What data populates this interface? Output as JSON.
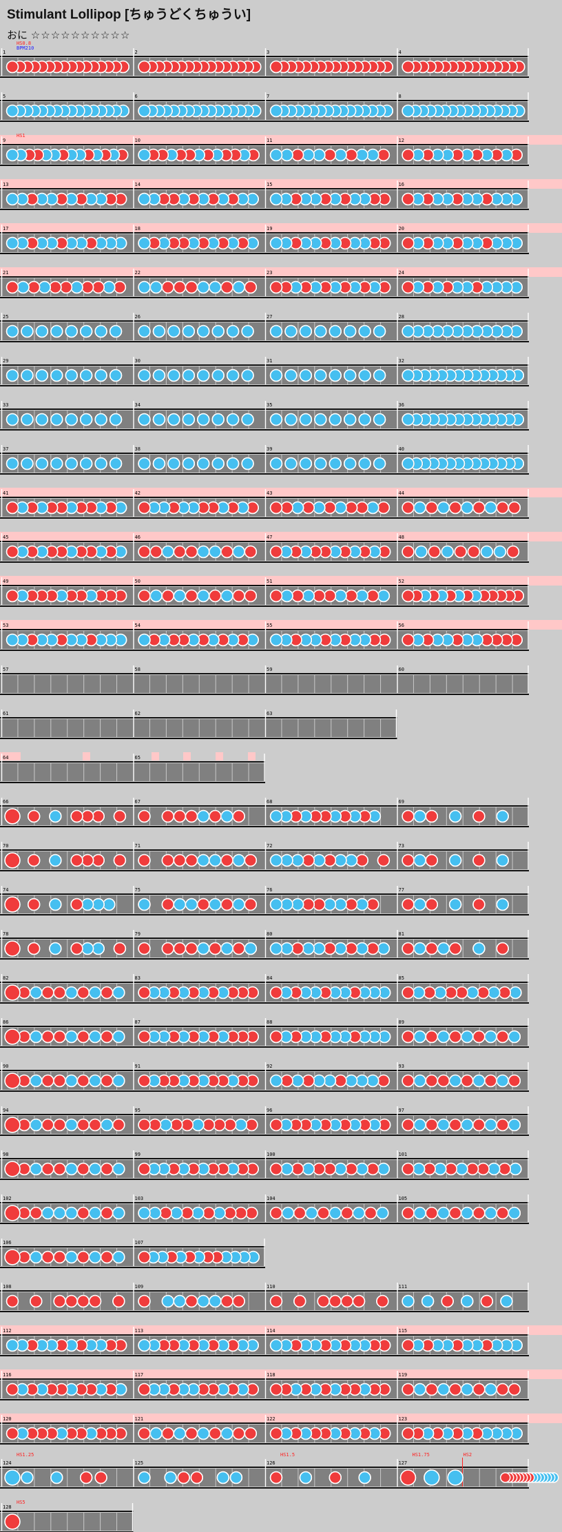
{
  "song": {
    "title": "Stimulant Lollipop",
    "subtitle": "[ちゅうどくちゅうい]",
    "course_label": "おに",
    "stars": "☆☆☆☆☆☆☆☆☆☆"
  },
  "colors": {
    "background": "#cccccc",
    "lane": "#808080",
    "lane_border": "#111111",
    "beat_line": "#c9c9c9",
    "gogo": "#ffc8c8",
    "don": "#f03c3c",
    "ka": "#45bff0",
    "note_outline": "#ffffff",
    "note_ring": "#000000",
    "hs_text": "#ff2020",
    "bpm_text": "#2020ff",
    "measure_text": "#000000"
  },
  "annotations": {
    "hs_start": "HS0.8",
    "bpm_start": "BPM210",
    "hs_9": "HS1",
    "hs_124": "HS1.25",
    "hs_126": "HS1.5",
    "hs_127": "HS1.75",
    "hs_127b": "HS2",
    "hs_128": "HS5"
  },
  "rows": [
    {
      "measures": [
        1,
        2,
        3,
        4
      ],
      "gogo": false,
      "label": "hs_start",
      "label2": "bpm_start",
      "notes": [
        "dddd dddd dddd dddd",
        "dddd dddd dddd dddd",
        "dddd dddd dddd dddd",
        "dddd dddd dddd dddd"
      ]
    },
    {
      "measures": [
        5,
        6,
        7,
        8
      ],
      "gogo": false,
      "notes": [
        "kkkk kkkk kkkk kkkk",
        "kkkk kkkk kkkk kkkk",
        "kkkk kkkk kkkk kkkk",
        "kkkk kkkk kkkk kkkk"
      ]
    },
    {
      "measures": [
        9,
        10,
        11,
        12
      ],
      "gogo": true,
      "label": "hs_9",
      "notes": [
        "kkddkkdkkdkdkd",
        "kddkddkdkddkd",
        "kkdkkdkdkkd",
        "dkdkkdkdkdkd"
      ]
    },
    {
      "measures": [
        13,
        14,
        15,
        16
      ],
      "gogo": true,
      "notes": [
        "kkdkkdkdkkdd",
        "kkddkdkdkdkk",
        "kkdkkdkdkkdd",
        "dkdkkdkkdkkk"
      ]
    },
    {
      "measures": [
        17,
        18,
        19,
        20
      ],
      "gogo": true,
      "notes": [
        "kkdkkdkkdkkk",
        "kdkddkdkdkdk",
        "kkdkkdkdkkdd",
        "dkdkkdkkdkkk"
      ]
    },
    {
      "measures": [
        21,
        22,
        23,
        24
      ],
      "gogo": true,
      "notes": [
        "dkdkddkddkd",
        "kkdddkkdkd",
        "ddkdkdkdkdkd",
        "dkdkdkkdkkkk"
      ]
    },
    {
      "measures": [
        25,
        26,
        27,
        28
      ],
      "gogo": false,
      "notes": [
        "kkkkkkkk",
        "kkkkkkkk",
        "kkkkkkkk",
        "kkkkkkkkkkkk"
      ]
    },
    {
      "measures": [
        29,
        30,
        31,
        32
      ],
      "gogo": false,
      "notes": [
        "kkkkkkkk",
        "kkkkkkkk",
        "kkkkkkkk",
        "kkkkkkkkkkkkkk"
      ]
    },
    {
      "measures": [
        33,
        34,
        35,
        36
      ],
      "gogo": false,
      "notes": [
        "kkkkkkkk",
        "kkkkkkkk",
        "kkkkkkkk",
        "kkkkkkkkkkkkkk"
      ]
    },
    {
      "measures": [
        37,
        38,
        39,
        40
      ],
      "gogo": false,
      "notes": [
        "kkkkkkkk",
        "kkkkkkkk",
        "kkkkkkkk",
        "kkkkkkkkkkkkkk"
      ]
    },
    {
      "measures": [
        41,
        42,
        43,
        44
      ],
      "gogo": true,
      "notes": [
        "dkdkddkddkdk",
        "dkkdkkddkdkd",
        "ddkdkdkddkd",
        "dkdkdkdkdd"
      ]
    },
    {
      "measures": [
        45,
        46,
        47,
        48
      ],
      "gogo": true,
      "notes": [
        "dkdkddkddkdk",
        "ddkddkkdkd",
        "dkdkddkdkdkd",
        "dkdkddkkd"
      ]
    },
    {
      "measures": [
        49,
        50,
        51,
        52
      ],
      "gogo": true,
      "notes": [
        "dkdddkddkddd",
        "dkdkdkdkdd",
        "dkdkddkdkdk",
        "ddkdkdkdkddddd"
      ]
    },
    {
      "measures": [
        53,
        54,
        55,
        56
      ],
      "gogo": true,
      "notes": [
        "kkdkkdkkdkkk",
        "kdkddkdkdkdk",
        "kkdkkdkdkkdd",
        "dkdkkdkkdddd"
      ]
    },
    {
      "measures": [
        57,
        58,
        59,
        60
      ],
      "gogo": false,
      "notes": [
        "",
        "",
        "",
        ""
      ]
    },
    {
      "measures": [
        61,
        62,
        63
      ],
      "gogo": false,
      "notes": [
        "",
        "",
        ""
      ]
    },
    {
      "measures": [
        64,
        65
      ],
      "gogo": false,
      "gogo_blinks": true,
      "notes": [
        "",
        ""
      ]
    },
    {
      "measures": [
        66,
        67,
        68,
        69
      ],
      "gogo": false,
      "notes": [
        "D_d_k_ddd_d",
        "d_dddkdkd_",
        "kkdkddkdkdk_",
        "dkd_k_d_k_"
      ]
    },
    {
      "measures": [
        70,
        71,
        72,
        73
      ],
      "gogo": false,
      "notes": [
        "D_d_k_ddd_d",
        "d_dddkkdkd",
        "kkkdkdkkd_d",
        "dkd_k_d_k_"
      ]
    },
    {
      "measures": [
        74,
        75,
        76,
        77
      ],
      "gogo": false,
      "notes": [
        "D_d_k_dkkk_",
        "k_dkkdkdkd",
        "kkkddkkdkd_",
        "dkd_k_d_k_"
      ]
    },
    {
      "measures": [
        78,
        79,
        80,
        81
      ],
      "gogo": false,
      "notes": [
        "D_d_k_dkk_d",
        "d_dddkdkdk",
        "kkdkkdkdkdk",
        "dkdkd_k_d_"
      ]
    },
    {
      "measures": [
        82,
        83,
        84,
        85
      ],
      "gogo": false,
      "notes": [
        "Ddkddkdkdk",
        "dkkdkdkdkddd",
        "dkdkkdkkdkkk",
        "dkdkddkdkdk"
      ]
    },
    {
      "measures": [
        86,
        87,
        88,
        89
      ],
      "gogo": false,
      "notes": [
        "Ddkddkdkdk",
        "dkkdkdkdkddd",
        "dkdkkdkkdkkk",
        "dkdkdkdkdk"
      ]
    },
    {
      "measures": [
        90,
        91,
        92,
        93
      ],
      "gogo": false,
      "notes": [
        "Ddkddkdkdk",
        "dkddkdkddkdd",
        "kdkdkkdkkkd",
        "dkddkdkdkd"
      ]
    },
    {
      "measures": [
        94,
        95,
        96,
        97
      ],
      "gogo": false,
      "notes": [
        "Ddkddkddkd",
        "ddkddkdddkd",
        "dkddkdkdkdkd",
        "dkdkdkdkdk"
      ]
    },
    {
      "measures": [
        98,
        99,
        100,
        101
      ],
      "gogo": false,
      "notes": [
        "Ddkddkdkdk",
        "dkkdkdkddkdd",
        "dkdkddkdkdk",
        "dkdkdkddkdk"
      ]
    },
    {
      "measures": [
        102,
        103,
        104,
        105
      ],
      "gogo": false,
      "notes": [
        "Dddkkkdkdk",
        "kkdkdkdkddd",
        "dkdkdkdkdk",
        "dkdkdkdkdk"
      ]
    },
    {
      "measures": [
        106,
        107
      ],
      "gogo": false,
      "notes": [
        "Ddkddkdkdk",
        "dkkdkdkddkkkk"
      ]
    },
    {
      "measures": [
        108,
        109,
        110,
        111
      ],
      "gogo": false,
      "notes": [
        "d_d_dddd_d",
        "d_kkdkkdd_",
        "d_d_dddd_d",
        "kkdkdk"
      ]
    },
    {
      "measures": [
        112,
        113,
        114,
        115
      ],
      "gogo": true,
      "notes": [
        "kkdkkdkdkkdd",
        "kkddkdkdkdkk",
        "kkdkkdkdkkdd",
        "dkdkkdkkdkkk"
      ]
    },
    {
      "measures": [
        116,
        117,
        118,
        119
      ],
      "gogo": true,
      "notes": [
        "dkdkddkddkdk",
        "dkkdkkddkdkd",
        "ddkdkdkddkdd",
        "dkdkdkdkdd"
      ]
    },
    {
      "measures": [
        120,
        121,
        122,
        123
      ],
      "gogo": true,
      "notes": [
        "dkdddkddkddd",
        "dkdkdkdkdd",
        "dkdkddkdkdkd",
        "ddkdkdkdkkkk"
      ]
    },
    {
      "measures": [
        124,
        125,
        126,
        127
      ],
      "gogo": false,
      "labels": {
        "124": "hs_124",
        "126": "hs_126",
        "127": "hs_127"
      },
      "notes": [
        "Kk_k_dd_",
        "k_kdd_kk_",
        "d_k_d_k_",
        "DKK_r"
      ]
    },
    {
      "measures": [
        128
      ],
      "gogo": false,
      "label": "hs_128",
      "notes": [
        "D___"
      ]
    }
  ]
}
